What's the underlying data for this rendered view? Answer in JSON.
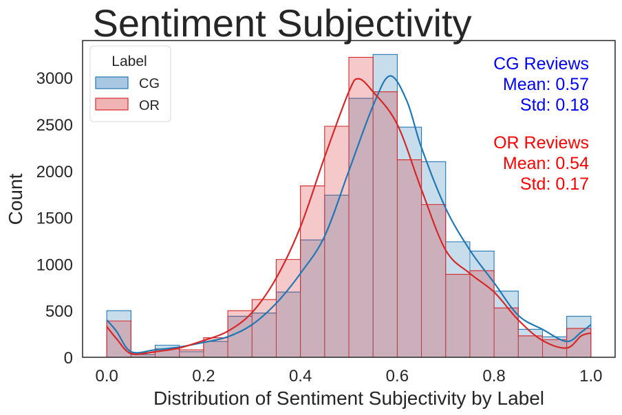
{
  "chart_data": {
    "type": "histogram",
    "title": "Sentiment Subjectivity",
    "xlabel": "Distribution of Sentiment Subjectivity by Label",
    "ylabel": "Count",
    "xlim": [
      -0.05,
      1.05
    ],
    "ylim": [
      0,
      3400
    ],
    "x_ticks": [
      "0.0",
      "0.2",
      "0.4",
      "0.6",
      "0.8",
      "1.0"
    ],
    "x_tick_values": [
      0.0,
      0.2,
      0.4,
      0.6,
      0.8,
      1.0
    ],
    "y_ticks": [
      "0",
      "500",
      "1000",
      "1500",
      "2000",
      "2500",
      "3000"
    ],
    "y_tick_values": [
      0,
      500,
      1000,
      1500,
      2000,
      2500,
      3000
    ],
    "bin_edges": [
      0.0,
      0.05,
      0.1,
      0.15,
      0.2,
      0.25,
      0.3,
      0.35,
      0.4,
      0.45,
      0.5,
      0.55,
      0.6,
      0.65,
      0.7,
      0.75,
      0.8,
      0.85,
      0.9,
      0.95,
      1.0
    ],
    "legend": {
      "title": "Label",
      "position": "upper-left"
    },
    "series": [
      {
        "name": "CG",
        "color": "#1f77b4",
        "fill": "#a9c6e3",
        "counts": [
          500,
          30,
          130,
          60,
          170,
          440,
          475,
          700,
          1260,
          1740,
          2780,
          3250,
          2470,
          2100,
          1240,
          1140,
          710,
          300,
          220,
          440
        ],
        "kde": [
          [
            0.0,
            400
          ],
          [
            0.02,
            280
          ],
          [
            0.05,
            60
          ],
          [
            0.1,
            80
          ],
          [
            0.15,
            110
          ],
          [
            0.2,
            160
          ],
          [
            0.25,
            220
          ],
          [
            0.3,
            350
          ],
          [
            0.35,
            580
          ],
          [
            0.4,
            900
          ],
          [
            0.45,
            1300
          ],
          [
            0.5,
            2000
          ],
          [
            0.55,
            2700
          ],
          [
            0.585,
            3020
          ],
          [
            0.62,
            2750
          ],
          [
            0.65,
            2250
          ],
          [
            0.7,
            1600
          ],
          [
            0.75,
            1150
          ],
          [
            0.8,
            800
          ],
          [
            0.85,
            450
          ],
          [
            0.9,
            300
          ],
          [
            0.95,
            170
          ],
          [
            0.98,
            270
          ],
          [
            1.0,
            350
          ]
        ],
        "stats_label": "CG Reviews",
        "mean_label": "Mean: 0.57",
        "std_label": "Std: 0.18",
        "stats_color": "#0000ff"
      },
      {
        "name": "OR",
        "color": "#d62728",
        "fill": "#f0b4b4",
        "counts": [
          390,
          50,
          90,
          80,
          210,
          500,
          620,
          1050,
          1840,
          2480,
          3220,
          2850,
          2120,
          1640,
          890,
          930,
          530,
          230,
          190,
          310
        ],
        "kde": [
          [
            0.0,
            330
          ],
          [
            0.02,
            200
          ],
          [
            0.05,
            40
          ],
          [
            0.1,
            60
          ],
          [
            0.15,
            100
          ],
          [
            0.2,
            180
          ],
          [
            0.25,
            280
          ],
          [
            0.3,
            480
          ],
          [
            0.35,
            850
          ],
          [
            0.4,
            1400
          ],
          [
            0.45,
            2150
          ],
          [
            0.5,
            2850
          ],
          [
            0.52,
            2990
          ],
          [
            0.55,
            2850
          ],
          [
            0.6,
            2500
          ],
          [
            0.65,
            1800
          ],
          [
            0.7,
            1150
          ],
          [
            0.75,
            900
          ],
          [
            0.8,
            700
          ],
          [
            0.85,
            400
          ],
          [
            0.9,
            180
          ],
          [
            0.95,
            100
          ],
          [
            0.98,
            230
          ],
          [
            1.0,
            260
          ]
        ],
        "stats_label": "OR Reviews",
        "mean_label": "Mean: 0.54",
        "std_label": "Std: 0.17",
        "stats_color": "#ff0000"
      }
    ]
  }
}
